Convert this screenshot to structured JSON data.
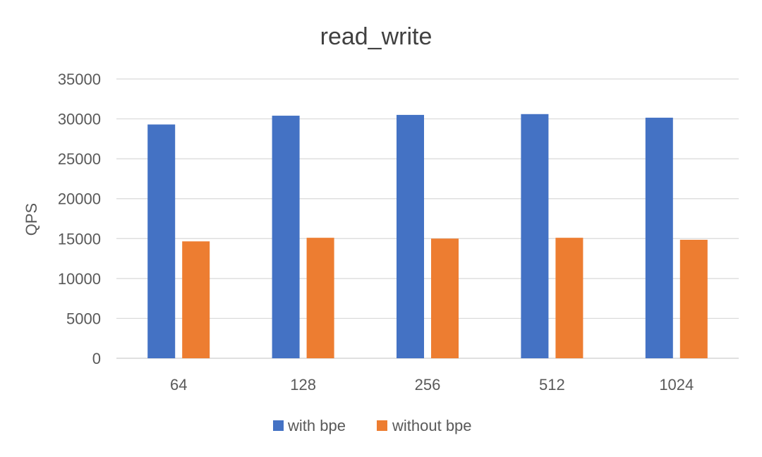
{
  "chart_data": {
    "type": "bar",
    "title": "read_write",
    "xlabel": "",
    "ylabel": "QPS",
    "categories": [
      "64",
      "128",
      "256",
      "512",
      "1024"
    ],
    "ylim": [
      0,
      35000
    ],
    "yticks": [
      0,
      5000,
      10000,
      15000,
      20000,
      25000,
      30000,
      35000
    ],
    "grid": true,
    "legend_position": "bottom",
    "series": [
      {
        "name": "with bpe",
        "color": "#4472C4",
        "values": [
          29300,
          30400,
          30500,
          30600,
          30150
        ]
      },
      {
        "name": "without bpe",
        "color": "#ED7D31",
        "values": [
          14650,
          15100,
          15000,
          15100,
          14850
        ]
      }
    ]
  }
}
